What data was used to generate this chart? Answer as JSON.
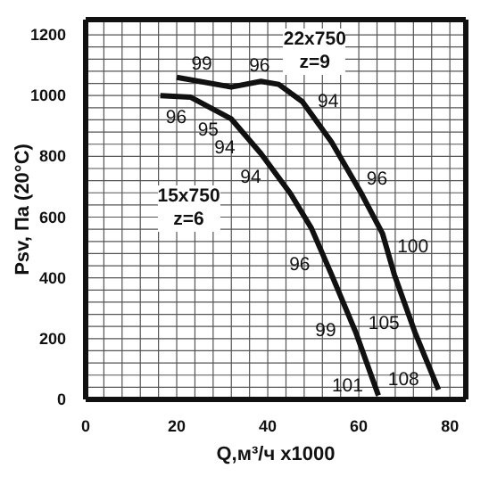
{
  "chart_data": {
    "type": "line",
    "xlabel": "Q,м³/ч x1000",
    "ylabel": "Psv, Па (20°C)",
    "series": [
      {
        "name": "15x750 z=6",
        "color": "#111111",
        "x": [
          16.4,
          23,
          32,
          38.5,
          45,
          49.6,
          54,
          59.3,
          64.3
        ],
        "values": [
          1000,
          995,
          923,
          809,
          677,
          563,
          411,
          222,
          13
        ]
      },
      {
        "name": "22x750 z=9",
        "color": "#111111",
        "x": [
          20,
          32,
          38.5,
          42.4,
          47.6,
          54,
          60.6,
          65.2,
          67.8,
          72.3,
          77.5
        ],
        "values": [
          1060,
          1028,
          1047,
          1037,
          980,
          847,
          677,
          546,
          411,
          222,
          32
        ]
      }
    ],
    "xlim": [
      0,
      83.5
    ],
    "ylim": [
      0,
      1250
    ],
    "xticks": [
      0,
      {
        "value": 4,
        "label": null
      },
      {
        "value": 8,
        "label": null
      },
      {
        "value": 12,
        "label": null
      },
      {
        "value": 16,
        "label": null
      },
      20,
      {
        "value": 24,
        "label": null
      },
      {
        "value": 28,
        "label": null
      },
      {
        "value": 32,
        "label": null
      },
      {
        "value": 36,
        "label": null
      },
      40,
      {
        "value": 44,
        "label": null
      },
      {
        "value": 48,
        "label": null
      },
      {
        "value": 52,
        "label": null
      },
      {
        "value": 56,
        "label": null
      },
      60,
      {
        "value": 64,
        "label": null
      },
      {
        "value": 68,
        "label": null
      },
      {
        "value": 72,
        "label": null
      },
      {
        "value": 76,
        "label": null
      },
      80
    ],
    "yticks": [
      0,
      {
        "value": 40,
        "label": null
      },
      {
        "value": 80,
        "label": null
      },
      {
        "value": 120,
        "label": null
      },
      {
        "value": 160,
        "label": null
      },
      200,
      {
        "value": 240,
        "label": null
      },
      {
        "value": 280,
        "label": null
      },
      {
        "value": 320,
        "label": null
      },
      {
        "value": 360,
        "label": null
      },
      400,
      {
        "value": 440,
        "label": null
      },
      {
        "value": 480,
        "label": null
      },
      {
        "value": 520,
        "label": null
      },
      {
        "value": 560,
        "label": null
      },
      600,
      {
        "value": 640,
        "label": null
      },
      {
        "value": 680,
        "label": null
      },
      {
        "value": 720,
        "label": null
      },
      {
        "value": 760,
        "label": null
      },
      800,
      {
        "value": 840,
        "label": null
      },
      {
        "value": 880,
        "label": null
      },
      {
        "value": 920,
        "label": null
      },
      {
        "value": 960,
        "label": null
      },
      1000,
      {
        "value": 1040,
        "label": null
      },
      {
        "value": 1080,
        "label": null
      },
      {
        "value": 1120,
        "label": null
      },
      {
        "value": 1160,
        "label": null
      },
      1200
    ],
    "grid": true,
    "marker": "none",
    "line_style": "solid",
    "annotations": [
      {
        "text": "96",
        "x": 19.9,
        "y": 997
      },
      {
        "text": "95",
        "x": 27.7,
        "y": 957
      },
      {
        "text": "94",
        "x": 33.7,
        "y": 893
      },
      {
        "text": "94",
        "x": 39.8,
        "y": 783
      },
      {
        "text": "96",
        "x": 52.9,
        "y": 449
      },
      {
        "text": "99",
        "x": 59,
        "y": 233
      },
      {
        "text": "101",
        "x": 63.4,
        "y": 51
      },
      {
        "text": "99",
        "x": 25.5,
        "y": 1045
      },
      {
        "text": "96",
        "x": 38.2,
        "y": 1046
      },
      {
        "text": "94",
        "x": 47,
        "y": 986
      },
      {
        "text": "96",
        "x": 58.5,
        "y": 731
      },
      {
        "text": "100",
        "x": 66,
        "y": 507
      },
      {
        "text": "105",
        "x": 71.4,
        "y": 256
      },
      {
        "text": "108",
        "x": 76.5,
        "y": 69
      }
    ]
  }
}
